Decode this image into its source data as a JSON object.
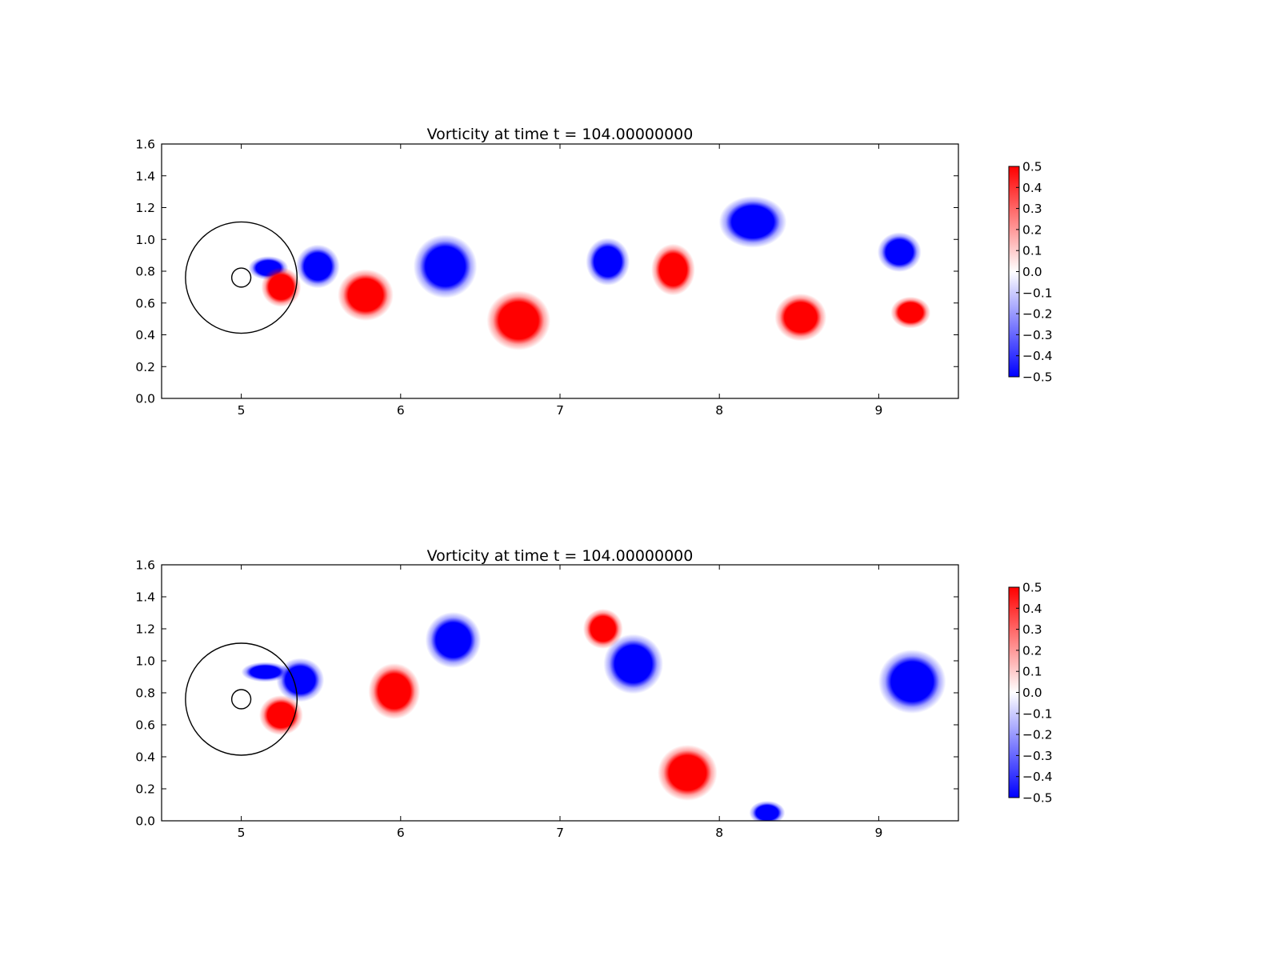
{
  "chart_data": [
    {
      "type": "heatmap",
      "title": "Vorticity at time t =   104.00000000",
      "xlabel": "",
      "ylabel": "",
      "xlim": [
        4.5,
        9.5
      ],
      "ylim": [
        0.0,
        1.6
      ],
      "xticks": [
        "5",
        "6",
        "7",
        "8",
        "9"
      ],
      "yticks": [
        "0.0",
        "0.2",
        "0.4",
        "0.6",
        "0.8",
        "1.0",
        "1.2",
        "1.4",
        "1.6"
      ],
      "colorbar": {
        "colormap": "bwr",
        "low_color": "#0000ff",
        "mid_color": "#ffffff",
        "high_color": "#ff0000",
        "range": [
          -0.5,
          0.5
        ],
        "ticks": [
          "−0.5",
          "−0.4",
          "−0.3",
          "−0.2",
          "−0.1",
          "0.0",
          "0.1",
          "0.2",
          "0.3",
          "0.4",
          "0.5"
        ]
      },
      "circles": [
        {
          "cx": 5.0,
          "cy": 0.76,
          "r": 0.35
        },
        {
          "cx": 5.0,
          "cy": 0.76,
          "r": 0.06
        }
      ],
      "vortices": [
        {
          "x": 5.17,
          "y": 0.82,
          "rx": 0.1,
          "ry": 0.06,
          "value": -0.5
        },
        {
          "x": 5.25,
          "y": 0.7,
          "rx": 0.1,
          "ry": 0.1,
          "value": 0.5
        },
        {
          "x": 5.48,
          "y": 0.83,
          "rx": 0.11,
          "ry": 0.11,
          "value": -0.5
        },
        {
          "x": 5.78,
          "y": 0.65,
          "rx": 0.14,
          "ry": 0.13,
          "value": 0.5
        },
        {
          "x": 6.28,
          "y": 0.83,
          "rx": 0.16,
          "ry": 0.16,
          "value": -0.5
        },
        {
          "x": 6.74,
          "y": 0.49,
          "rx": 0.16,
          "ry": 0.15,
          "value": 0.5
        },
        {
          "x": 7.3,
          "y": 0.86,
          "rx": 0.11,
          "ry": 0.12,
          "value": -0.5
        },
        {
          "x": 7.71,
          "y": 0.81,
          "rx": 0.11,
          "ry": 0.13,
          "value": 0.5
        },
        {
          "x": 8.21,
          "y": 1.11,
          "rx": 0.17,
          "ry": 0.13,
          "value": -0.5
        },
        {
          "x": 8.51,
          "y": 0.51,
          "rx": 0.13,
          "ry": 0.12,
          "value": 0.5
        },
        {
          "x": 9.13,
          "y": 0.92,
          "rx": 0.11,
          "ry": 0.1,
          "value": -0.5
        },
        {
          "x": 9.2,
          "y": 0.54,
          "rx": 0.1,
          "ry": 0.08,
          "value": 0.5
        }
      ]
    },
    {
      "type": "heatmap",
      "title": "Vorticity at time t =   104.00000000",
      "xlabel": "",
      "ylabel": "",
      "xlim": [
        4.5,
        9.5
      ],
      "ylim": [
        0.0,
        1.6
      ],
      "xticks": [
        "5",
        "6",
        "7",
        "8",
        "9"
      ],
      "yticks": [
        "0.0",
        "0.2",
        "0.4",
        "0.6",
        "0.8",
        "1.0",
        "1.2",
        "1.4",
        "1.6"
      ],
      "colorbar": {
        "colormap": "bwr",
        "low_color": "#0000ff",
        "mid_color": "#ffffff",
        "high_color": "#ff0000",
        "range": [
          -0.5,
          0.5
        ],
        "ticks": [
          "−0.5",
          "−0.4",
          "−0.3",
          "−0.2",
          "−0.1",
          "0.0",
          "0.1",
          "0.2",
          "0.3",
          "0.4",
          "0.5"
        ]
      },
      "circles": [
        {
          "cx": 5.0,
          "cy": 0.76,
          "r": 0.35
        },
        {
          "cx": 5.0,
          "cy": 0.76,
          "r": 0.06
        }
      ],
      "vortices": [
        {
          "x": 5.15,
          "y": 0.93,
          "rx": 0.12,
          "ry": 0.05,
          "value": -0.5
        },
        {
          "x": 5.37,
          "y": 0.88,
          "rx": 0.12,
          "ry": 0.11,
          "value": -0.5
        },
        {
          "x": 5.25,
          "y": 0.66,
          "rx": 0.11,
          "ry": 0.1,
          "value": 0.5
        },
        {
          "x": 5.96,
          "y": 0.81,
          "rx": 0.13,
          "ry": 0.14,
          "value": 0.5
        },
        {
          "x": 6.33,
          "y": 1.13,
          "rx": 0.14,
          "ry": 0.14,
          "value": -0.5
        },
        {
          "x": 7.27,
          "y": 1.2,
          "rx": 0.1,
          "ry": 0.1,
          "value": 0.5
        },
        {
          "x": 7.46,
          "y": 0.98,
          "rx": 0.15,
          "ry": 0.15,
          "value": -0.5
        },
        {
          "x": 7.8,
          "y": 0.3,
          "rx": 0.15,
          "ry": 0.14,
          "value": 0.5
        },
        {
          "x": 8.3,
          "y": 0.05,
          "rx": 0.09,
          "ry": 0.06,
          "value": -0.5
        },
        {
          "x": 9.21,
          "y": 0.87,
          "rx": 0.17,
          "ry": 0.16,
          "value": -0.5
        }
      ]
    }
  ]
}
